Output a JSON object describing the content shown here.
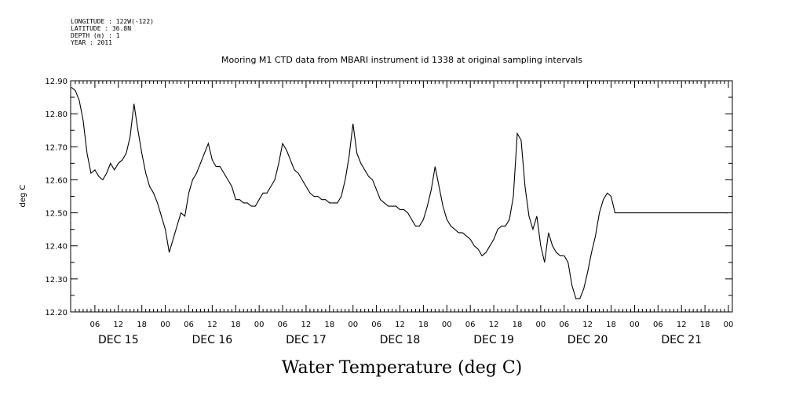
{
  "header": {
    "longitude": "LONGITUDE : 122W(-122)",
    "latitude": "LATITUDE : 36.8N",
    "depth": "DEPTH (m) : 1",
    "year": "YEAR : 2011"
  },
  "chart_data": {
    "type": "line",
    "title": "Mooring M1 CTD data from MBARI instrument id 1338 at original sampling intervals",
    "xlabel": "Water Temperature (deg C)",
    "ylabel": "deg C",
    "ylim": [
      12.2,
      12.9
    ],
    "xlim_hours": [
      0,
      168
    ],
    "y_ticks": [
      "12.20",
      "12.30",
      "12.40",
      "12.50",
      "12.60",
      "12.70",
      "12.80",
      "12.90"
    ],
    "hour_ticks": [
      "06",
      "12",
      "18",
      "00"
    ],
    "day_labels": [
      "DEC 15",
      "DEC 16",
      "DEC 17",
      "DEC 18",
      "DEC 19",
      "DEC 20",
      "DEC 21"
    ],
    "grid": false,
    "color": "#000000",
    "series": [
      {
        "x": [
          0,
          1,
          2,
          3,
          4,
          5,
          6,
          7,
          8,
          9,
          10,
          11,
          12,
          13,
          14,
          15,
          16,
          17,
          18,
          19,
          20,
          21,
          22,
          23,
          24,
          25,
          26,
          27,
          28,
          29,
          30,
          31,
          32,
          33,
          34,
          35,
          36,
          37,
          38,
          39,
          40,
          41,
          42,
          43,
          44,
          45,
          46,
          47,
          48,
          49,
          50,
          51,
          52,
          53,
          54,
          55,
          56,
          57,
          58,
          59,
          60,
          61,
          62,
          63,
          64,
          65,
          66,
          67,
          68,
          69,
          70,
          71,
          72,
          73,
          74,
          75,
          76,
          77,
          78,
          79,
          80,
          81,
          82,
          83,
          84,
          85,
          86,
          87,
          88,
          89,
          90,
          91,
          92,
          93,
          94,
          95,
          96,
          97,
          98,
          99,
          100,
          101,
          102,
          103,
          104,
          105,
          106,
          107,
          108,
          109,
          110,
          111,
          112,
          113,
          114,
          115,
          116,
          117,
          118,
          119,
          120,
          121,
          122,
          123,
          124,
          125,
          126,
          127,
          128,
          129,
          130,
          131,
          132,
          133,
          134,
          135,
          136,
          137,
          138,
          139,
          140,
          141,
          142,
          143,
          144,
          145,
          146,
          147,
          148,
          149,
          150,
          151,
          152,
          153,
          154,
          155,
          156,
          157,
          158,
          159,
          160,
          161,
          162,
          163,
          164,
          165,
          166,
          167,
          168
        ],
        "y": [
          12.88,
          12.87,
          12.84,
          12.78,
          12.68,
          12.62,
          12.63,
          12.61,
          12.6,
          12.62,
          12.65,
          12.63,
          12.65,
          12.66,
          12.68,
          12.73,
          12.83,
          12.75,
          12.68,
          12.62,
          12.58,
          12.56,
          12.53,
          12.49,
          12.45,
          12.38,
          12.42,
          12.46,
          12.5,
          12.49,
          12.56,
          12.6,
          12.62,
          12.65,
          12.68,
          12.71,
          12.66,
          12.64,
          12.64,
          12.62,
          12.6,
          12.58,
          12.54,
          12.54,
          12.53,
          12.53,
          12.52,
          12.52,
          12.54,
          12.56,
          12.56,
          12.58,
          12.6,
          12.65,
          12.71,
          12.69,
          12.66,
          12.63,
          12.62,
          12.6,
          12.58,
          12.56,
          12.55,
          12.55,
          12.54,
          12.54,
          12.53,
          12.53,
          12.53,
          12.55,
          12.6,
          12.67,
          12.77,
          12.68,
          12.65,
          12.63,
          12.61,
          12.6,
          12.57,
          12.54,
          12.53,
          12.52,
          12.52,
          12.52,
          12.51,
          12.51,
          12.5,
          12.48,
          12.46,
          12.46,
          12.48,
          12.52,
          12.57,
          12.64,
          12.58,
          12.52,
          12.48,
          12.46,
          12.45,
          12.44,
          12.44,
          12.43,
          12.42,
          12.4,
          12.39,
          12.37,
          12.38,
          12.4,
          12.42,
          12.45,
          12.46,
          12.46,
          12.48,
          12.55,
          12.74,
          12.72,
          12.58,
          12.49,
          12.45,
          12.49,
          12.4,
          12.35,
          12.44,
          12.4,
          12.38,
          12.37,
          12.37,
          12.35,
          12.28,
          12.24,
          12.24,
          12.27,
          12.32,
          12.38,
          12.43,
          12.5,
          12.54,
          12.56,
          12.55,
          12.5,
          12.5,
          12.5,
          12.5,
          12.5,
          12.5,
          12.5,
          12.5,
          12.5,
          12.5,
          12.5,
          12.5,
          12.5,
          12.5,
          12.5,
          12.5,
          12.5,
          12.5,
          12.5,
          12.5,
          12.5,
          12.5,
          12.5,
          12.5,
          12.5,
          12.5,
          12.5,
          12.5,
          12.5,
          12.5
        ]
      }
    ]
  }
}
